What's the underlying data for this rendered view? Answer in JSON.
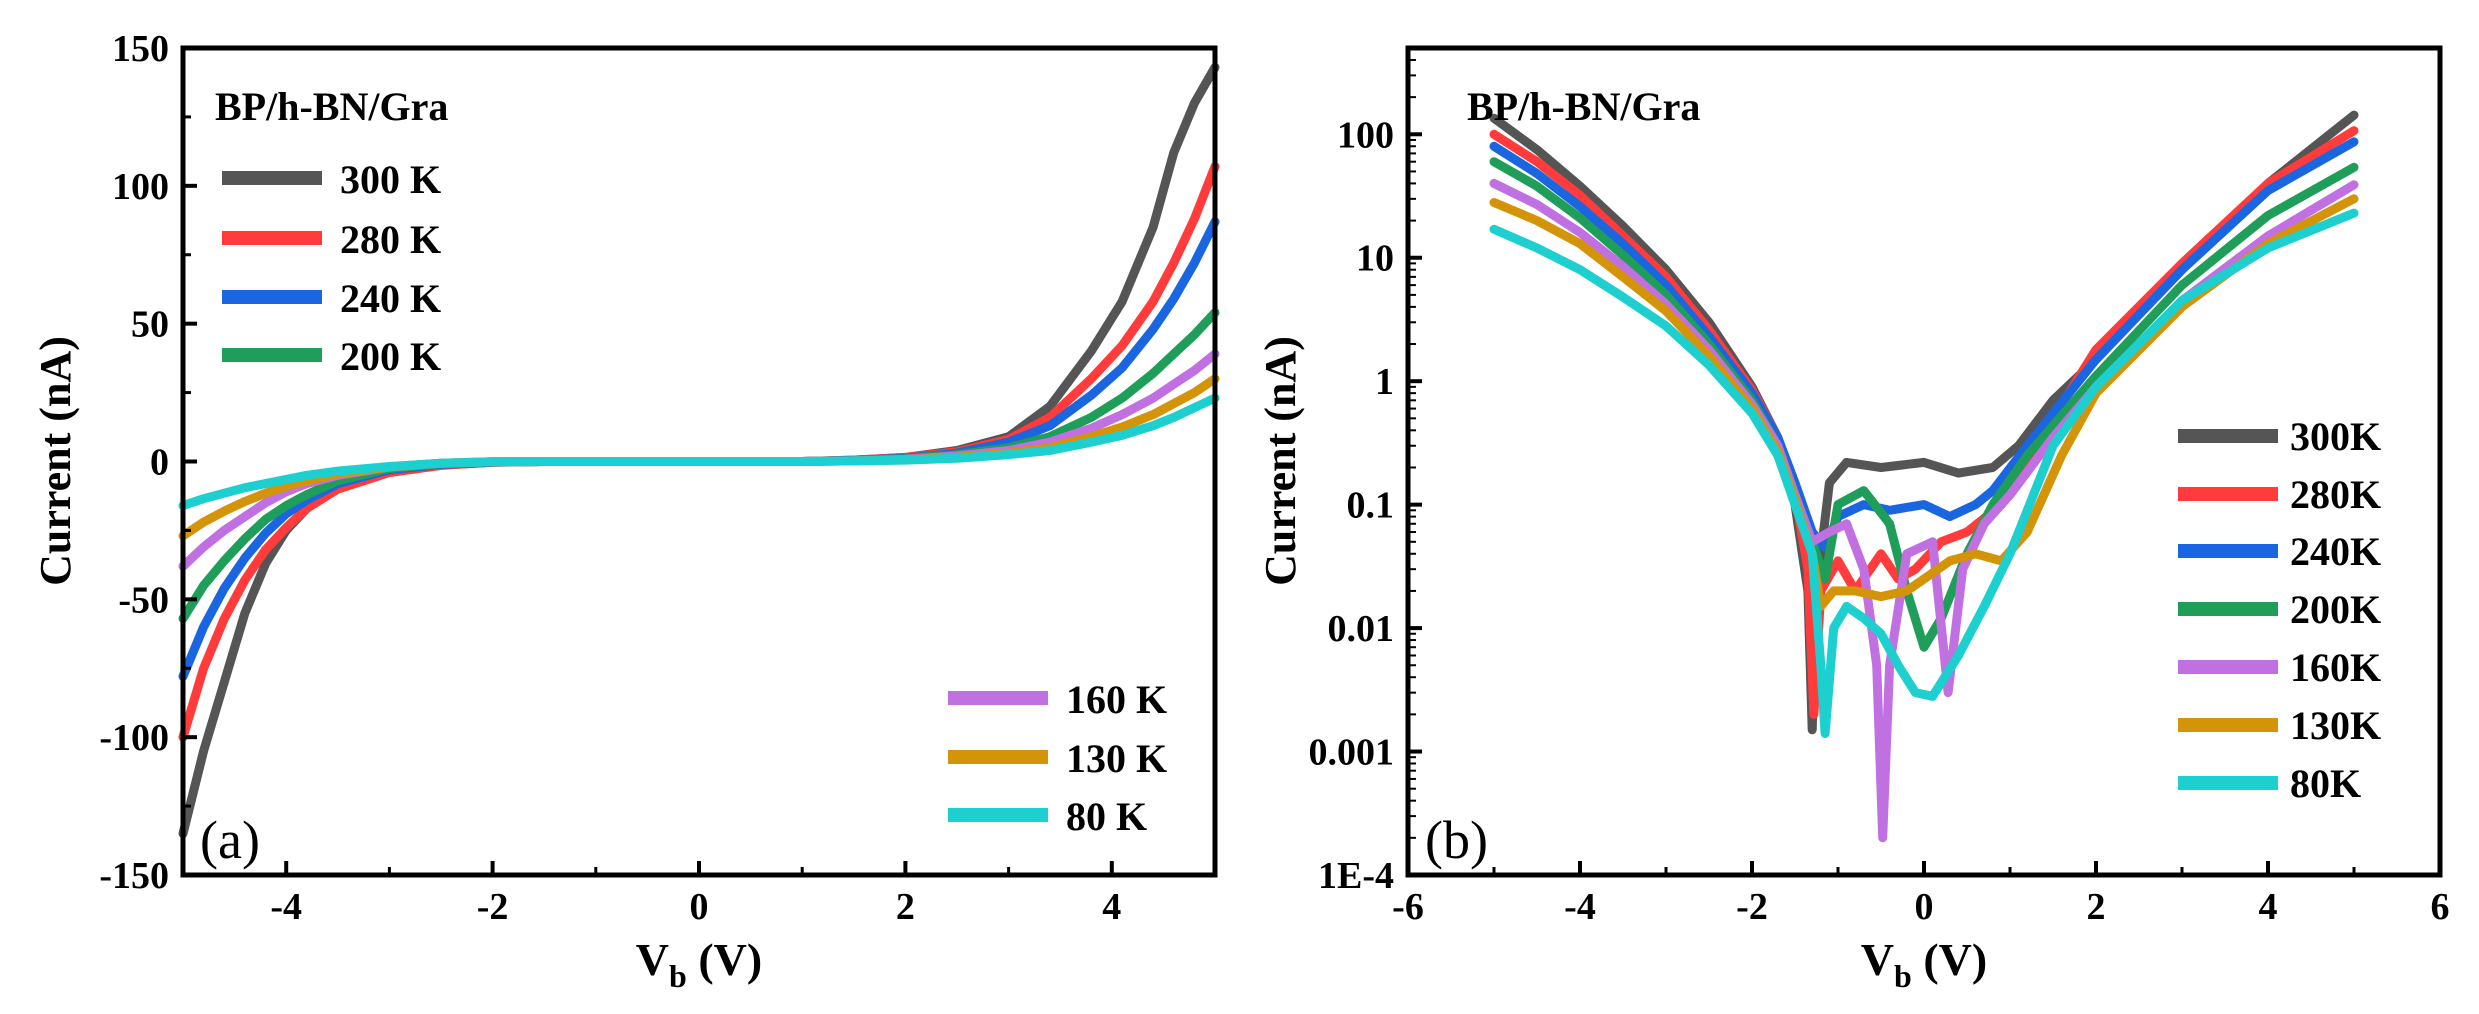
{
  "chart_data": [
    {
      "type": "line",
      "panel_label": "(a)",
      "annotation": "BP/h-BN/Gra",
      "xlabel": "V",
      "xlabel_sub": "b",
      "xlabel_unit": " (V)",
      "ylabel": "Current (nA)",
      "xlim": [
        -5,
        5
      ],
      "ylim": [
        -150,
        150
      ],
      "xticks": [
        -4,
        -2,
        0,
        2,
        4
      ],
      "yticks": [
        -150,
        -100,
        -50,
        0,
        50,
        100,
        150
      ],
      "legend_top": [
        "300 K",
        "280 K",
        "240 K",
        "200 K"
      ],
      "legend_bottom": [
        "160 K",
        "130 K",
        "80 K"
      ],
      "series": [
        {
          "name": "300 K",
          "color": "#555555",
          "x": [
            -5,
            -4.8,
            -4.6,
            -4.4,
            -4.2,
            -4,
            -3.8,
            -3.5,
            -3,
            -2.5,
            -2,
            -1.5,
            -1,
            0,
            1,
            1.5,
            2,
            2.5,
            3,
            3.4,
            3.8,
            4.1,
            4.4,
            4.6,
            4.8,
            5
          ],
          "y": [
            -135,
            -105,
            -80,
            -55,
            -37,
            -25,
            -17,
            -9,
            -3.5,
            -1.2,
            -0.3,
            0,
            0,
            0,
            0,
            0.5,
            1.5,
            4,
            9,
            20,
            40,
            58,
            85,
            112,
            130,
            143
          ]
        },
        {
          "name": "280 K",
          "color": "#ff3b3b",
          "x": [
            -5,
            -4.8,
            -4.6,
            -4.4,
            -4.2,
            -4,
            -3.8,
            -3.5,
            -3,
            -2.5,
            -2,
            -1.5,
            -1,
            0,
            1,
            1.5,
            2,
            2.5,
            3,
            3.4,
            3.8,
            4.1,
            4.4,
            4.6,
            4.8,
            5
          ],
          "y": [
            -100,
            -75,
            -57,
            -43,
            -32,
            -24,
            -17,
            -10,
            -4,
            -1.4,
            -0.3,
            0,
            0,
            0,
            0,
            0.5,
            1.5,
            3.5,
            8,
            16,
            30,
            42,
            58,
            72,
            88,
            107
          ]
        },
        {
          "name": "240 K",
          "color": "#1a66e0",
          "x": [
            -5,
            -4.8,
            -4.6,
            -4.4,
            -4.2,
            -4,
            -3.8,
            -3.5,
            -3,
            -2.5,
            -2,
            -1.5,
            -1,
            0,
            1,
            1.5,
            2,
            2.5,
            3,
            3.4,
            3.8,
            4.1,
            4.4,
            4.6,
            4.8,
            5
          ],
          "y": [
            -78,
            -60,
            -46,
            -35,
            -26,
            -19,
            -14,
            -8,
            -3,
            -1,
            -0.2,
            0,
            0,
            0,
            0,
            0.4,
            1.2,
            3,
            7,
            13,
            24,
            34,
            48,
            59,
            72,
            87
          ]
        },
        {
          "name": "200 K",
          "color": "#1f9e5a",
          "x": [
            -5,
            -4.8,
            -4.6,
            -4.4,
            -4.2,
            -4,
            -3.8,
            -3.5,
            -3,
            -2.5,
            -2,
            -1.5,
            -1,
            0,
            1,
            1.5,
            2,
            2.5,
            3,
            3.4,
            3.8,
            4.1,
            4.4,
            4.6,
            4.8,
            5
          ],
          "y": [
            -57,
            -45,
            -36,
            -28,
            -21,
            -16,
            -12,
            -7,
            -2.5,
            -0.8,
            -0.1,
            0,
            0,
            0,
            0,
            0.3,
            1,
            2.5,
            5,
            9,
            16,
            23,
            32,
            39,
            46,
            54
          ]
        },
        {
          "name": "160 K",
          "color": "#c070e0",
          "x": [
            -5,
            -4.8,
            -4.6,
            -4.4,
            -4.2,
            -4,
            -3.8,
            -3.5,
            -3,
            -2.5,
            -2,
            -1.5,
            -1,
            0,
            1,
            1.5,
            2,
            2.5,
            3,
            3.4,
            3.8,
            4.1,
            4.4,
            4.6,
            4.8,
            5
          ],
          "y": [
            -38,
            -31,
            -25,
            -20,
            -15,
            -11,
            -8,
            -5,
            -2,
            -0.6,
            -0.1,
            0,
            0,
            0,
            0,
            0.3,
            0.8,
            2,
            4,
            7,
            12,
            17,
            23,
            28,
            33,
            39
          ]
        },
        {
          "name": "130 K",
          "color": "#d4940a",
          "x": [
            -5,
            -4.8,
            -4.6,
            -4.4,
            -4.2,
            -4,
            -3.8,
            -3.5,
            -3,
            -2.5,
            -2,
            -1.5,
            -1,
            0,
            1,
            1.5,
            2,
            2.5,
            3,
            3.4,
            3.8,
            4.1,
            4.4,
            4.6,
            4.8,
            5
          ],
          "y": [
            -27,
            -22,
            -18,
            -14.5,
            -11.5,
            -9,
            -7,
            -4.5,
            -2,
            -0.6,
            -0.1,
            0,
            0,
            0,
            0,
            0.2,
            0.6,
            1.5,
            3,
            5,
            9,
            12.5,
            17,
            21,
            25,
            30
          ]
        },
        {
          "name": "80 K",
          "color": "#1ecfcf",
          "x": [
            -5,
            -4.8,
            -4.6,
            -4.4,
            -4.2,
            -4,
            -3.8,
            -3.5,
            -3,
            -2.5,
            -2,
            -1.5,
            -1,
            0,
            1,
            1.5,
            2,
            2.5,
            3,
            3.4,
            3.8,
            4.1,
            4.4,
            4.6,
            4.8,
            5
          ],
          "y": [
            -16,
            -13.5,
            -11.5,
            -9.5,
            -8,
            -6.5,
            -5,
            -3.5,
            -1.8,
            -0.6,
            -0.1,
            0,
            0,
            0,
            0,
            0.2,
            0.5,
            1.2,
            2.5,
            4,
            7,
            9.5,
            13,
            16,
            19.5,
            23
          ]
        }
      ]
    },
    {
      "type": "line",
      "yscale": "log",
      "panel_label": "(b)",
      "annotation": "BP/h-BN/Gra",
      "xlabel": "V",
      "xlabel_sub": "b",
      "xlabel_unit": " (V)",
      "ylabel": "Current (nA)",
      "xlim": [
        -6,
        6
      ],
      "ylim": [
        0.0001,
        500
      ],
      "xticks": [
        -6,
        -4,
        -2,
        0,
        2,
        4,
        6
      ],
      "ytick_values": [
        0.0001,
        0.001,
        0.01,
        0.1,
        1,
        10,
        100
      ],
      "ytick_labels": [
        "1E-4",
        "0.001",
        "0.01",
        "0.1",
        "1",
        "10",
        "100"
      ],
      "legend": [
        "300K",
        "280K",
        "240K",
        "200K",
        "160K",
        "130K",
        "80K"
      ],
      "series": [
        {
          "name": "300K",
          "color": "#555555",
          "x": [
            -5,
            -4.5,
            -4,
            -3.5,
            -3,
            -2.5,
            -2,
            -1.7,
            -1.5,
            -1.35,
            -1.3,
            -1.25,
            -1.1,
            -0.9,
            -0.5,
            0,
            0.4,
            0.8,
            1.1,
            1.5,
            2,
            3,
            4,
            5
          ],
          "y": [
            135,
            75,
            38,
            18,
            8,
            3,
            0.9,
            0.35,
            0.1,
            0.02,
            0.0015,
            0.02,
            0.15,
            0.22,
            0.2,
            0.22,
            0.18,
            0.2,
            0.3,
            0.7,
            1.5,
            8,
            40,
            143
          ]
        },
        {
          "name": "280K",
          "color": "#ff3b3b",
          "x": [
            -5,
            -4.5,
            -4,
            -3.5,
            -3,
            -2.5,
            -2,
            -1.7,
            -1.5,
            -1.35,
            -1.28,
            -1.2,
            -1.0,
            -0.8,
            -0.5,
            -0.3,
            -0.1,
            0.2,
            0.5,
            0.9,
            1.3,
            2,
            3,
            4,
            5
          ],
          "y": [
            100,
            60,
            32,
            15,
            7,
            2.6,
            0.85,
            0.35,
            0.12,
            0.03,
            0.002,
            0.02,
            0.035,
            0.02,
            0.04,
            0.025,
            0.03,
            0.05,
            0.06,
            0.1,
            0.3,
            1.8,
            9,
            40,
            107
          ]
        },
        {
          "name": "240K",
          "color": "#1a66e0",
          "x": [
            -5,
            -4.5,
            -4,
            -3.5,
            -3,
            -2.5,
            -2,
            -1.7,
            -1.5,
            -1.3,
            -1.15,
            -1.0,
            -0.7,
            -0.4,
            0,
            0.3,
            0.6,
            0.8,
            1.2,
            2,
            3,
            4,
            5
          ],
          "y": [
            80,
            48,
            26,
            13,
            6,
            2.3,
            0.8,
            0.35,
            0.15,
            0.06,
            0.045,
            0.08,
            0.1,
            0.09,
            0.1,
            0.08,
            0.1,
            0.13,
            0.3,
            1.5,
            8,
            35,
            87
          ]
        },
        {
          "name": "200K",
          "color": "#1f9e5a",
          "x": [
            -5,
            -4.5,
            -4,
            -3.5,
            -3,
            -2.5,
            -2,
            -1.7,
            -1.5,
            -1.3,
            -1.15,
            -1.0,
            -0.7,
            -0.4,
            -0.2,
            0,
            0.2,
            0.5,
            0.8,
            1.2,
            2,
            3,
            4,
            5
          ],
          "y": [
            60,
            38,
            21,
            10.5,
            5,
            2,
            0.7,
            0.3,
            0.12,
            0.05,
            0.025,
            0.1,
            0.13,
            0.07,
            0.02,
            0.007,
            0.012,
            0.04,
            0.1,
            0.25,
            1.1,
            6,
            22,
            54
          ]
        },
        {
          "name": "160K",
          "color": "#c070e0",
          "x": [
            -5,
            -4.5,
            -4,
            -3.5,
            -3,
            -2.5,
            -2,
            -1.7,
            -1.5,
            -1.3,
            -1.1,
            -0.9,
            -0.7,
            -0.55,
            -0.48,
            -0.4,
            -0.2,
            0.1,
            0.28,
            0.45,
            0.7,
            1.0,
            1.5,
            2,
            3,
            4,
            5
          ],
          "y": [
            40,
            27,
            16,
            8.5,
            4.2,
            1.8,
            0.65,
            0.3,
            0.12,
            0.05,
            0.06,
            0.07,
            0.03,
            0.005,
            0.0002,
            0.005,
            0.04,
            0.05,
            0.003,
            0.03,
            0.07,
            0.12,
            0.35,
            0.9,
            4.5,
            15,
            39
          ]
        },
        {
          "name": "130K",
          "color": "#d4940a",
          "x": [
            -5,
            -4.5,
            -4,
            -3.5,
            -3,
            -2.5,
            -2,
            -1.7,
            -1.5,
            -1.3,
            -1.2,
            -1.05,
            -0.8,
            -0.5,
            -0.2,
            0,
            0.3,
            0.6,
            0.9,
            1.2,
            1.6,
            2,
            3,
            4,
            5
          ],
          "y": [
            28,
            20,
            13,
            7,
            3.7,
            1.6,
            0.6,
            0.27,
            0.11,
            0.04,
            0.015,
            0.02,
            0.02,
            0.018,
            0.02,
            0.025,
            0.035,
            0.04,
            0.035,
            0.06,
            0.25,
            0.8,
            4,
            13,
            30
          ]
        },
        {
          "name": "80K",
          "color": "#1ecfcf",
          "x": [
            -5,
            -4.5,
            -4,
            -3.5,
            -3,
            -2.5,
            -2,
            -1.7,
            -1.5,
            -1.3,
            -1.2,
            -1.15,
            -1.05,
            -0.9,
            -0.7,
            -0.5,
            -0.3,
            -0.1,
            0.1,
            0.4,
            0.7,
            1.0,
            1.5,
            2,
            3,
            4,
            5
          ],
          "y": [
            17,
            12,
            8,
            4.8,
            2.8,
            1.35,
            0.55,
            0.25,
            0.1,
            0.04,
            0.005,
            0.0014,
            0.01,
            0.015,
            0.012,
            0.009,
            0.005,
            0.003,
            0.0028,
            0.006,
            0.015,
            0.04,
            0.3,
            0.9,
            4.5,
            12,
            23
          ]
        }
      ]
    }
  ]
}
